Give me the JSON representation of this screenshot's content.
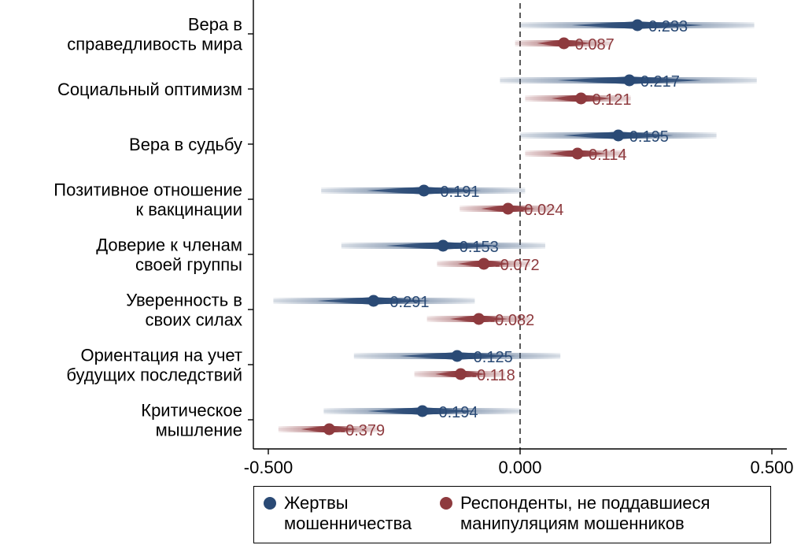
{
  "chart_data": {
    "type": "forest",
    "xlim": [
      -0.5,
      0.5
    ],
    "x_ticks": [
      "-0.500",
      "0.000",
      "0.500"
    ],
    "reference_line": 0,
    "grid": false,
    "legend_position": "bottom",
    "categories": [
      "Вера в\nсправедливость мира",
      "Социальный оптимизм",
      "Вера в судьбу",
      "Позитивное отношение\nк вакцинации",
      "Доверие к членам\nсвоей группы",
      "Уверенность в\nсвоих силах",
      "Ориентация на учет\nбудущих последствий",
      "Критическое\nмышление"
    ],
    "series": [
      {
        "name": "Жертвы\nмошенничества",
        "color": "#2a4a75",
        "estimates": [
          0.233,
          0.217,
          0.195,
          -0.191,
          -0.153,
          -0.291,
          -0.125,
          -0.194
        ],
        "labels": [
          "0.233",
          "0.217",
          "0.195",
          "-0.191",
          "-0.153",
          "-0.291",
          "-0.125",
          "-0.194"
        ],
        "ci_low": [
          0.0,
          -0.04,
          0.0,
          -0.395,
          -0.355,
          -0.49,
          -0.33,
          -0.39
        ],
        "ci_high": [
          0.465,
          0.47,
          0.39,
          0.01,
          0.05,
          -0.09,
          0.08,
          0.0
        ]
      },
      {
        "name": "Респонденты, не поддавшиеся\nманипуляциям мошенников",
        "color": "#8e3a3e",
        "estimates": [
          0.087,
          0.121,
          0.114,
          -0.024,
          -0.072,
          -0.082,
          -0.118,
          -0.379
        ],
        "labels": [
          "0.087",
          "0.121",
          "0.114",
          "-0.024",
          "-0.072",
          "-0.082",
          "-0.118",
          "-0.379"
        ],
        "ci_low": [
          -0.01,
          0.01,
          0.01,
          -0.12,
          -0.165,
          -0.185,
          -0.21,
          -0.48
        ],
        "ci_high": [
          0.18,
          0.22,
          0.21,
          0.07,
          0.02,
          0.02,
          -0.03,
          -0.28
        ]
      }
    ]
  }
}
